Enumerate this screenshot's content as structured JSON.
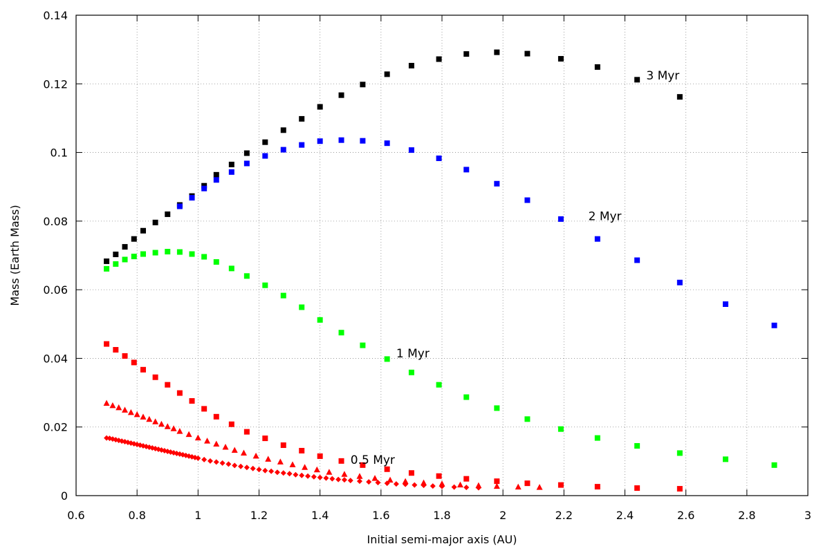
{
  "chart_data": {
    "type": "scatter",
    "title": "",
    "xlabel": "Initial semi-major axis (AU)",
    "ylabel": "Mass (Earth Mass)",
    "xlim": [
      0.6,
      3
    ],
    "ylim": [
      0,
      0.14
    ],
    "xticks": [
      "0.6",
      "0.8",
      "1",
      "1.2",
      "1.4",
      "1.6",
      "1.8",
      "2",
      "2.2",
      "2.4",
      "2.6",
      "2.8",
      "3"
    ],
    "yticks": [
      "0",
      "0.02",
      "0.04",
      "0.06",
      "0.08",
      "0.1",
      "0.12",
      "0.14"
    ],
    "grid": true,
    "colors": {
      "black": "#000000",
      "blue": "#0000ff",
      "green": "#00ff00",
      "red": "#ff0000"
    },
    "annotations": [
      {
        "text": "3 Myr",
        "x": 2.47,
        "y": 0.1225
      },
      {
        "text": "2 Myr",
        "x": 2.28,
        "y": 0.0815
      },
      {
        "text": "1 Myr",
        "x": 1.65,
        "y": 0.0415
      },
      {
        "text": "0.5 Myr",
        "x": 1.5,
        "y": 0.0105
      }
    ],
    "series": [
      {
        "marker": "square",
        "color": "#000000",
        "x": [
          0.7,
          0.73,
          0.76,
          0.79,
          0.82,
          0.86,
          0.9,
          0.94,
          0.98,
          1.02,
          1.06,
          1.11,
          1.16,
          1.22,
          1.28,
          1.34,
          1.4,
          1.47,
          1.54,
          1.62,
          1.7,
          1.79,
          1.88,
          1.98,
          2.08,
          2.19,
          2.31,
          2.44,
          2.58
        ],
        "y": [
          0.0683,
          0.0703,
          0.0725,
          0.0748,
          0.0772,
          0.0796,
          0.082,
          0.0847,
          0.0873,
          0.0903,
          0.0935,
          0.0965,
          0.0998,
          0.103,
          0.1065,
          0.1098,
          0.1133,
          0.1167,
          0.1198,
          0.1228,
          0.1253,
          0.1272,
          0.1287,
          0.1292,
          0.1288,
          0.1273,
          0.1249,
          0.1212,
          0.1162
        ]
      },
      {
        "marker": "square",
        "color": "#0000ff",
        "x": [
          0.94,
          0.98,
          1.02,
          1.06,
          1.11,
          1.16,
          1.22,
          1.28,
          1.34,
          1.4,
          1.47,
          1.54,
          1.62,
          1.7,
          1.79,
          1.88,
          1.98,
          2.08,
          2.19,
          2.31,
          2.44,
          2.58,
          2.73,
          2.89
        ],
        "y": [
          0.0843,
          0.0868,
          0.0895,
          0.092,
          0.0943,
          0.0968,
          0.099,
          0.1008,
          0.1022,
          0.1033,
          0.1036,
          0.1034,
          0.1027,
          0.1007,
          0.0983,
          0.095,
          0.0909,
          0.0861,
          0.0806,
          0.0748,
          0.0686,
          0.0621,
          0.0558,
          0.0496
        ]
      },
      {
        "marker": "square",
        "color": "#00ff00",
        "x": [
          0.7,
          0.73,
          0.76,
          0.79,
          0.82,
          0.86,
          0.9,
          0.94,
          0.98,
          1.02,
          1.06,
          1.11,
          1.16,
          1.22,
          1.28,
          1.34,
          1.4,
          1.47,
          1.54,
          1.62,
          1.7,
          1.79,
          1.88,
          1.98,
          2.08,
          2.19,
          2.31,
          2.44,
          2.58,
          2.73,
          2.89
        ],
        "y": [
          0.0661,
          0.0675,
          0.0688,
          0.0697,
          0.0704,
          0.0708,
          0.0711,
          0.071,
          0.0704,
          0.0696,
          0.0681,
          0.0662,
          0.064,
          0.0613,
          0.0583,
          0.0549,
          0.0512,
          0.0475,
          0.0438,
          0.0398,
          0.0359,
          0.0323,
          0.0287,
          0.0255,
          0.0223,
          0.0194,
          0.0168,
          0.0145,
          0.0124,
          0.0106,
          0.0089
        ]
      },
      {
        "marker": "square",
        "color": "#ff0000",
        "x": [
          0.7,
          0.73,
          0.76,
          0.79,
          0.82,
          0.86,
          0.9,
          0.94,
          0.98,
          1.02,
          1.06,
          1.11,
          1.16,
          1.22,
          1.28,
          1.34,
          1.4,
          1.47,
          1.54,
          1.62,
          1.7,
          1.79,
          1.88,
          1.98,
          2.08,
          2.19,
          2.31,
          2.44,
          2.58
        ],
        "y": [
          0.0442,
          0.0425,
          0.0407,
          0.0388,
          0.0367,
          0.0345,
          0.0323,
          0.0299,
          0.0276,
          0.0253,
          0.023,
          0.0208,
          0.0186,
          0.0167,
          0.0147,
          0.0131,
          0.0115,
          0.0101,
          0.0089,
          0.0077,
          0.0066,
          0.0057,
          0.0049,
          0.0042,
          0.0036,
          0.0031,
          0.0026,
          0.0022,
          0.002
        ]
      },
      {
        "marker": "triangle",
        "color": "#ff0000",
        "x": [
          0.7,
          0.72,
          0.74,
          0.76,
          0.78,
          0.8,
          0.82,
          0.84,
          0.86,
          0.88,
          0.9,
          0.92,
          0.94,
          0.97,
          1.0,
          1.03,
          1.06,
          1.09,
          1.12,
          1.15,
          1.19,
          1.23,
          1.27,
          1.31,
          1.35,
          1.39,
          1.43,
          1.48,
          1.53,
          1.58,
          1.63,
          1.68,
          1.74,
          1.8,
          1.86,
          1.92,
          1.98,
          2.05,
          2.12
        ],
        "y": [
          0.0269,
          0.0262,
          0.0256,
          0.0249,
          0.0242,
          0.0236,
          0.0229,
          0.0222,
          0.0215,
          0.0208,
          0.0201,
          0.0195,
          0.0187,
          0.0178,
          0.0168,
          0.0159,
          0.015,
          0.0141,
          0.0132,
          0.0124,
          0.0115,
          0.0106,
          0.0098,
          0.009,
          0.0082,
          0.0075,
          0.0068,
          0.0062,
          0.0056,
          0.005,
          0.0045,
          0.0041,
          0.0037,
          0.0034,
          0.0031,
          0.0029,
          0.0027,
          0.0025,
          0.0024
        ]
      },
      {
        "marker": "diamond",
        "color": "#ff0000",
        "x": [
          0.7,
          0.71,
          0.72,
          0.73,
          0.74,
          0.75,
          0.76,
          0.77,
          0.78,
          0.79,
          0.8,
          0.81,
          0.82,
          0.83,
          0.84,
          0.85,
          0.86,
          0.87,
          0.88,
          0.89,
          0.9,
          0.91,
          0.92,
          0.93,
          0.94,
          0.95,
          0.96,
          0.97,
          0.98,
          0.99,
          1.0,
          1.02,
          1.04,
          1.06,
          1.08,
          1.1,
          1.12,
          1.14,
          1.16,
          1.18,
          1.2,
          1.22,
          1.24,
          1.26,
          1.28,
          1.3,
          1.32,
          1.34,
          1.36,
          1.38,
          1.4,
          1.42,
          1.44,
          1.46,
          1.48,
          1.5,
          1.53,
          1.56,
          1.59,
          1.62,
          1.65,
          1.68,
          1.71,
          1.74,
          1.77,
          1.8,
          1.84,
          1.88,
          1.92
        ],
        "y": [
          0.0168,
          0.0167,
          0.0165,
          0.0163,
          0.0161,
          0.0159,
          0.0157,
          0.0155,
          0.0153,
          0.0151,
          0.0149,
          0.0147,
          0.0145,
          0.0143,
          0.0141,
          0.0139,
          0.0137,
          0.0135,
          0.0133,
          0.0131,
          0.0129,
          0.0127,
          0.0125,
          0.0123,
          0.0121,
          0.0119,
          0.0117,
          0.0115,
          0.0113,
          0.0111,
          0.0109,
          0.0105,
          0.0101,
          0.0098,
          0.0095,
          0.0092,
          0.0088,
          0.0085,
          0.0082,
          0.0079,
          0.0076,
          0.0073,
          0.0071,
          0.0068,
          0.0066,
          0.0064,
          0.0061,
          0.0059,
          0.0057,
          0.0055,
          0.0053,
          0.0051,
          0.0049,
          0.0047,
          0.0046,
          0.0044,
          0.0042,
          0.004,
          0.0038,
          0.0036,
          0.0034,
          0.0033,
          0.0031,
          0.003,
          0.0028,
          0.0027,
          0.0025,
          0.0024,
          0.0023
        ]
      }
    ]
  }
}
